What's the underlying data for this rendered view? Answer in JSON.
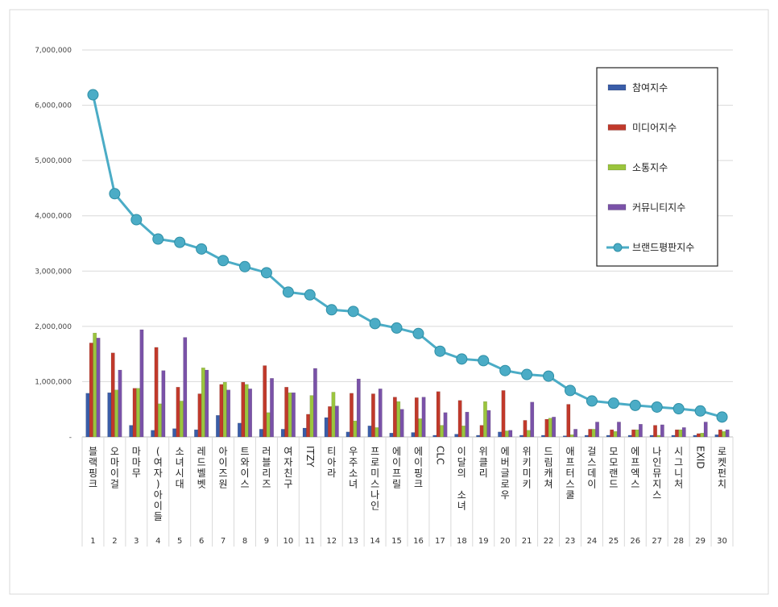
{
  "chart_data": {
    "type": "bar",
    "y_ticks": [
      "-",
      "1,000,000",
      "2,000,000",
      "3,000,000",
      "4,000,000",
      "5,000,000",
      "6,000,000",
      "7,000,000"
    ],
    "ylim": [
      0,
      7000000
    ],
    "grid": true,
    "legend_position": "top-right",
    "categories": [
      "블랙핑크",
      "오마이걸",
      "마마무",
      "(여자)아이들",
      "소녀시대",
      "레드벨벳",
      "아이즈원",
      "트와이스",
      "러블리즈",
      "여자친구",
      "ITZY",
      "티아라",
      "우주소녀",
      "프로미스나인",
      "에이프릴",
      "에이핑크",
      "CLC",
      "이달의 소녀",
      "위클리",
      "에버글로우",
      "위키미키",
      "드림캐쳐",
      "애프터스쿨",
      "걸스데이",
      "모모랜드",
      "에프엑스",
      "나인뮤지스",
      "시그니처",
      "EXID",
      "로켓펀치"
    ],
    "ranks": [
      "1",
      "2",
      "3",
      "4",
      "5",
      "6",
      "7",
      "8",
      "9",
      "10",
      "11",
      "12",
      "13",
      "14",
      "15",
      "16",
      "17",
      "18",
      "19",
      "20",
      "21",
      "22",
      "23",
      "24",
      "25",
      "26",
      "27",
      "28",
      "29",
      "30"
    ],
    "series": [
      {
        "name": "참여지수",
        "color": "#3a5da8",
        "kind": "bar",
        "values": [
          790000,
          800000,
          210000,
          120000,
          150000,
          130000,
          390000,
          250000,
          140000,
          140000,
          160000,
          350000,
          90000,
          200000,
          70000,
          80000,
          30000,
          50000,
          30000,
          90000,
          30000,
          30000,
          20000,
          30000,
          30000,
          30000,
          30000,
          30000,
          30000,
          40000
        ]
      },
      {
        "name": "미디어지수",
        "color": "#c0392b",
        "kind": "bar",
        "values": [
          1700000,
          1520000,
          880000,
          1620000,
          900000,
          780000,
          950000,
          990000,
          1290000,
          900000,
          410000,
          550000,
          790000,
          780000,
          720000,
          710000,
          820000,
          660000,
          210000,
          840000,
          300000,
          320000,
          590000,
          140000,
          130000,
          130000,
          210000,
          130000,
          60000,
          130000
        ]
      },
      {
        "name": "소통지수",
        "color": "#9bc53d",
        "kind": "bar",
        "values": [
          1880000,
          850000,
          880000,
          600000,
          650000,
          1250000,
          990000,
          950000,
          440000,
          800000,
          750000,
          810000,
          290000,
          170000,
          640000,
          330000,
          210000,
          200000,
          640000,
          110000,
          120000,
          340000,
          40000,
          140000,
          100000,
          130000,
          30000,
          130000,
          70000,
          100000
        ]
      },
      {
        "name": "커뮤니티지수",
        "color": "#7a52a8",
        "kind": "bar",
        "values": [
          1790000,
          1210000,
          1940000,
          1200000,
          1800000,
          1210000,
          850000,
          870000,
          1060000,
          800000,
          1240000,
          560000,
          1050000,
          870000,
          500000,
          720000,
          440000,
          450000,
          480000,
          120000,
          630000,
          360000,
          140000,
          270000,
          270000,
          230000,
          220000,
          170000,
          270000,
          130000
        ]
      },
      {
        "name": "브랜드평판지수",
        "color": "#4bacc6",
        "kind": "line",
        "values": [
          6190000,
          4400000,
          3930000,
          3580000,
          3520000,
          3400000,
          3190000,
          3080000,
          2970000,
          2620000,
          2570000,
          2300000,
          2270000,
          2050000,
          1970000,
          1870000,
          1550000,
          1410000,
          1380000,
          1200000,
          1130000,
          1100000,
          840000,
          650000,
          610000,
          570000,
          540000,
          510000,
          470000,
          360000
        ]
      }
    ]
  }
}
